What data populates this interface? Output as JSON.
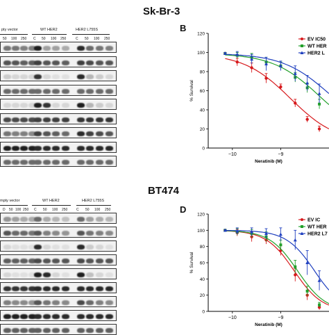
{
  "figure": {
    "top": {
      "title": "Sk-Br-3",
      "blot_letter": "",
      "graph_letter": "B",
      "groups": [
        {
          "label": "pty vector",
          "doses": [
            "",
            "50",
            "100",
            "250"
          ]
        },
        {
          "label": "WT HER2",
          "doses": [
            "C",
            "50",
            "100",
            "250"
          ]
        },
        {
          "label": "HER2 L755S",
          "doses": [
            "C",
            "50",
            "100",
            "250"
          ]
        }
      ],
      "blot_rows": [
        {
          "vec": [
            0.55,
            0.55,
            0.5,
            0.5
          ],
          "wt": [
            0.95,
            0.35,
            0.35,
            0.3
          ],
          "mut": [
            0.9,
            0.6,
            0.55,
            0.5
          ]
        },
        {
          "vec": [
            0.7,
            0.7,
            0.65,
            0.65
          ],
          "wt": [
            0.8,
            0.7,
            0.7,
            0.65
          ],
          "mut": [
            0.8,
            0.75,
            0.7,
            0.7
          ]
        },
        {
          "vec": [
            0.15,
            0.1,
            0.1,
            0.1
          ],
          "wt": [
            0.85,
            0.1,
            0.05,
            0.05
          ],
          "mut": [
            0.9,
            0.25,
            0.15,
            0.1
          ]
        },
        {
          "vec": [
            0.6,
            0.6,
            0.6,
            0.6
          ],
          "wt": [
            0.6,
            0.6,
            0.6,
            0.6
          ],
          "mut": [
            0.6,
            0.6,
            0.6,
            0.6
          ]
        },
        {
          "vec": [
            0.1,
            0.1,
            0.1,
            0.1
          ],
          "wt": [
            0.95,
            0.85,
            0.1,
            0.1
          ],
          "mut": [
            0.95,
            0.25,
            0.15,
            0.1
          ]
        },
        {
          "vec": [
            0.75,
            0.75,
            0.75,
            0.75
          ],
          "wt": [
            0.8,
            0.8,
            0.8,
            0.8
          ],
          "mut": [
            0.85,
            0.85,
            0.85,
            0.85
          ]
        },
        {
          "vec": [
            0.55,
            0.5,
            0.5,
            0.45
          ],
          "wt": [
            0.8,
            0.7,
            0.65,
            0.6
          ],
          "mut": [
            0.9,
            0.8,
            0.75,
            0.7
          ]
        },
        {
          "vec": [
            0.95,
            0.95,
            0.95,
            0.95
          ],
          "wt": [
            0.9,
            0.9,
            0.9,
            0.9
          ],
          "mut": [
            0.9,
            0.9,
            0.9,
            0.9
          ]
        },
        {
          "vec": [
            0.6,
            0.6,
            0.6,
            0.6
          ],
          "wt": [
            0.6,
            0.6,
            0.6,
            0.6
          ],
          "mut": [
            0.6,
            0.6,
            0.6,
            0.6
          ]
        }
      ]
    },
    "bottom": {
      "title": "BT474",
      "blot_letter": "",
      "graph_letter": "D",
      "groups": [
        {
          "label": "mpty vector",
          "doses": [
            "D",
            "50",
            "100",
            "250"
          ]
        },
        {
          "label": "WT HER2",
          "doses": [
            "C",
            "50",
            "100",
            "250"
          ]
        },
        {
          "label": "HER2 L755S",
          "doses": [
            "C",
            "50",
            "100",
            "250"
          ]
        }
      ],
      "blot_rows": [
        {
          "vec": [
            0.4,
            0.35,
            0.3,
            0.3
          ],
          "wt": [
            0.6,
            0.3,
            0.25,
            0.2
          ],
          "mut": [
            0.6,
            0.35,
            0.3,
            0.25
          ]
        },
        {
          "vec": [
            0.7,
            0.6,
            0.6,
            0.55
          ],
          "wt": [
            0.7,
            0.5,
            0.45,
            0.4
          ],
          "mut": [
            0.7,
            0.55,
            0.5,
            0.45
          ]
        },
        {
          "vec": [
            0.1,
            0.05,
            0.05,
            0.05
          ],
          "wt": [
            0.9,
            0.1,
            0.05,
            0.05
          ],
          "mut": [
            0.9,
            0.15,
            0.1,
            0.05
          ]
        },
        {
          "vec": [
            0.65,
            0.65,
            0.65,
            0.65
          ],
          "wt": [
            0.75,
            0.7,
            0.7,
            0.7
          ],
          "mut": [
            0.75,
            0.7,
            0.7,
            0.7
          ]
        },
        {
          "vec": [
            0.1,
            0.05,
            0.05,
            0.05
          ],
          "wt": [
            0.95,
            0.9,
            0.1,
            0.05
          ],
          "mut": [
            0.95,
            0.2,
            0.1,
            0.05
          ]
        },
        {
          "vec": [
            0.85,
            0.85,
            0.85,
            0.85
          ],
          "wt": [
            0.9,
            0.9,
            0.9,
            0.9
          ],
          "mut": [
            0.9,
            0.9,
            0.9,
            0.9
          ]
        },
        {
          "vec": [
            0.5,
            0.45,
            0.45,
            0.4
          ],
          "wt": [
            0.7,
            0.55,
            0.5,
            0.45
          ],
          "mut": [
            0.75,
            0.6,
            0.5,
            0.45
          ]
        },
        {
          "vec": [
            0.95,
            0.95,
            0.95,
            0.95
          ],
          "wt": [
            0.9,
            0.9,
            0.9,
            0.9
          ],
          "mut": [
            0.9,
            0.9,
            0.9,
            0.9
          ]
        },
        {
          "vec": [
            0.65,
            0.65,
            0.65,
            0.65
          ],
          "wt": [
            0.65,
            0.65,
            0.65,
            0.65
          ],
          "mut": [
            0.65,
            0.65,
            0.65,
            0.65
          ]
        }
      ]
    }
  },
  "chart_data": [
    {
      "type": "line",
      "panel": "B",
      "xlabel": "Neratinib (M)",
      "ylabel": "% Survival",
      "xlim": [
        -10.5,
        -8.0
      ],
      "ylim": [
        0,
        120
      ],
      "xticks": [
        -10,
        -9
      ],
      "xtick_labels": [
        "−10",
        "−9"
      ],
      "yticks": [
        0,
        20,
        40,
        60,
        80,
        100,
        120
      ],
      "legend_position": "top-right",
      "series": [
        {
          "name": "EV IC50",
          "color": "#d7191c",
          "marker": "circle",
          "x": [
            -10.15,
            -9.9,
            -9.6,
            -9.3,
            -9.0,
            -8.7,
            -8.45,
            -8.2
          ],
          "y": [
            99,
            90,
            84,
            73,
            64,
            47,
            30,
            20
          ],
          "err": [
            1,
            4,
            5,
            5,
            3,
            4,
            3,
            3
          ],
          "fit_top": 99,
          "fit_bottom": 5,
          "fit_logic50": -8.8,
          "fit_hill": 0.9
        },
        {
          "name": "WT HER",
          "color": "#22a02a",
          "marker": "square",
          "x": [
            -10.15,
            -9.9,
            -9.6,
            -9.3,
            -9.0,
            -8.7,
            -8.45,
            -8.2
          ],
          "y": [
            99,
            97,
            95,
            90,
            86,
            74,
            63,
            46
          ],
          "err": [
            1,
            3,
            4,
            5,
            4,
            5,
            5,
            5
          ],
          "fit_top": 99,
          "fit_bottom": 10,
          "fit_logic50": -8.2,
          "fit_hill": 0.9
        },
        {
          "name": "HER2 L",
          "color": "#1f3fbf",
          "marker": "triangle",
          "x": [
            -10.15,
            -9.9,
            -9.6,
            -9.3,
            -9.0,
            -8.7,
            -8.45,
            -8.2
          ],
          "y": [
            99,
            98,
            93,
            88,
            86,
            78,
            68,
            57
          ],
          "err": [
            1,
            3,
            5,
            7,
            5,
            8,
            8,
            10
          ],
          "fit_top": 99,
          "fit_bottom": 15,
          "fit_logic50": -8.0,
          "fit_hill": 0.9
        }
      ]
    },
    {
      "type": "line",
      "panel": "D",
      "xlabel": "Neratinib (M)",
      "ylabel": "% Survival",
      "xlim": [
        -10.5,
        -8.0
      ],
      "ylim": [
        0,
        120
      ],
      "xticks": [
        -10,
        -9
      ],
      "xtick_labels": [
        "−10",
        "−9"
      ],
      "yticks": [
        0,
        20,
        40,
        60,
        80,
        100,
        120
      ],
      "legend_position": "top-right",
      "series": [
        {
          "name": "EV IC",
          "color": "#d7191c",
          "marker": "circle",
          "x": [
            -10.15,
            -9.9,
            -9.6,
            -9.3,
            -9.0,
            -8.7,
            -8.45,
            -8.2
          ],
          "y": [
            100,
            97,
            92,
            88,
            75,
            45,
            20,
            5
          ],
          "err": [
            1,
            4,
            6,
            5,
            6,
            8,
            6,
            3
          ],
          "fit_top": 100,
          "fit_bottom": 0,
          "fit_logic50": -8.72,
          "fit_hill": 1.5
        },
        {
          "name": "WT HER",
          "color": "#22a02a",
          "marker": "square",
          "x": [
            -10.15,
            -9.9,
            -9.6,
            -9.3,
            -9.0,
            -8.7,
            -8.45,
            -8.2
          ],
          "y": [
            100,
            98,
            96,
            92,
            82,
            55,
            25,
            8
          ],
          "err": [
            1,
            4,
            5,
            6,
            6,
            8,
            6,
            3
          ],
          "fit_top": 100,
          "fit_bottom": 0,
          "fit_logic50": -8.65,
          "fit_hill": 1.5
        },
        {
          "name": "HER2 L7",
          "color": "#1f3fbf",
          "marker": "triangle",
          "x": [
            -10.15,
            -9.9,
            -9.6,
            -9.3,
            -9.0,
            -8.7,
            -8.45,
            -8.2
          ],
          "y": [
            100,
            99,
            98,
            96,
            95,
            88,
            60,
            38
          ],
          "err": [
            1,
            4,
            5,
            6,
            8,
            12,
            15,
            12
          ],
          "fit_top": 100,
          "fit_bottom": 0,
          "fit_logic50": -8.3,
          "fit_hill": 1.5
        }
      ]
    }
  ]
}
